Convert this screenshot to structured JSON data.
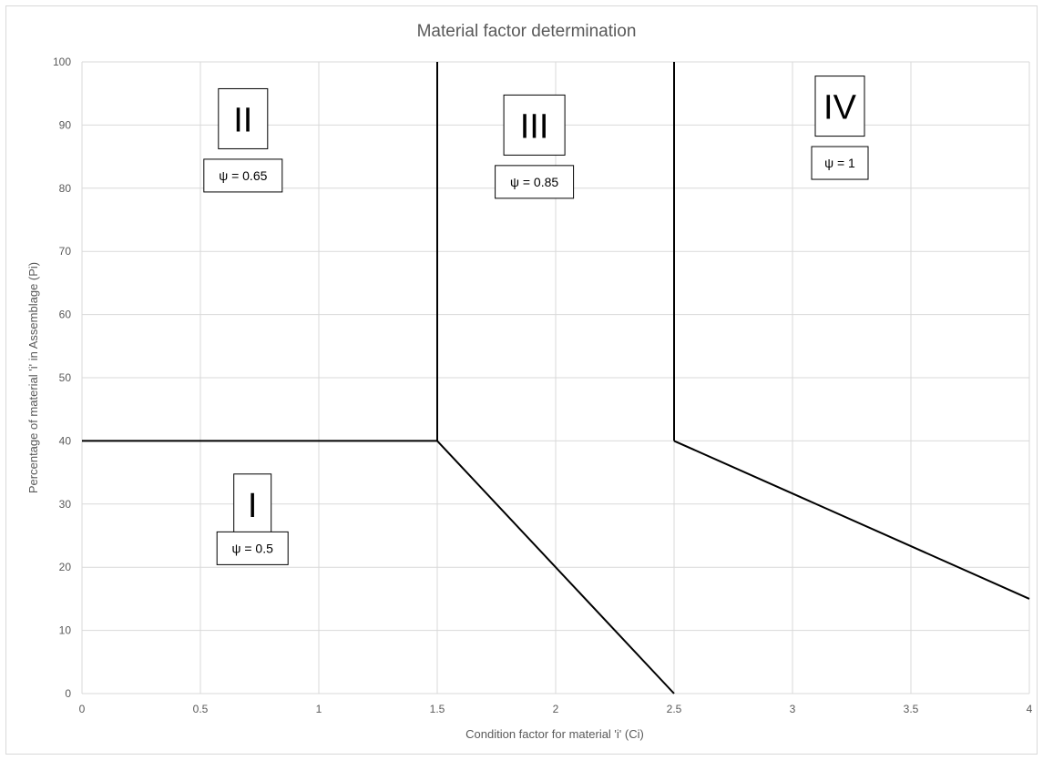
{
  "chart_data": {
    "type": "line",
    "title": "Material factor determination",
    "xlabel": "Condition factor for material 'i' (Ci)",
    "ylabel": "Percentage of material 'i' in Assemblage (Pi)",
    "xlim": [
      0,
      4
    ],
    "ylim": [
      0,
      100
    ],
    "x_ticks": [
      0,
      0.5,
      1,
      1.5,
      2,
      2.5,
      3,
      3.5,
      4
    ],
    "x_tick_labels": [
      "0",
      "0.5",
      "1",
      "1.5",
      "2",
      "2.5",
      "3",
      "3.5",
      "4"
    ],
    "y_ticks": [
      0,
      10,
      20,
      30,
      40,
      50,
      60,
      70,
      80,
      90,
      100
    ],
    "y_tick_labels": [
      "0",
      "10",
      "20",
      "30",
      "40",
      "50",
      "60",
      "70",
      "80",
      "90",
      "100"
    ],
    "grid": true,
    "series": [
      {
        "x": [
          0,
          1.5
        ],
        "y": [
          40,
          40
        ]
      },
      {
        "x": [
          1.5,
          1.5
        ],
        "y": [
          40,
          100
        ]
      },
      {
        "x": [
          1.5,
          2.5
        ],
        "y": [
          40,
          0
        ]
      },
      {
        "x": [
          2.5,
          2.5
        ],
        "y": [
          40,
          100
        ]
      },
      {
        "x": [
          2.5,
          4
        ],
        "y": [
          40,
          15
        ]
      }
    ],
    "annotations": [
      {
        "label": "I",
        "psi": "ψ = 0.5",
        "x": 0.72,
        "y": 30,
        "psi_y": 23
      },
      {
        "label": "II",
        "psi": "ψ = 0.65",
        "x": 0.68,
        "y": 91,
        "psi_y": 82
      },
      {
        "label": "III",
        "psi": "ψ = 0.85",
        "x": 1.91,
        "y": 90,
        "psi_y": 81
      },
      {
        "label": "IV",
        "psi": "ψ = 1",
        "x": 3.2,
        "y": 93,
        "psi_y": 84
      }
    ],
    "colors": {
      "line": "#000000",
      "grid": "#d9d9d9",
      "text": "#595959"
    }
  }
}
